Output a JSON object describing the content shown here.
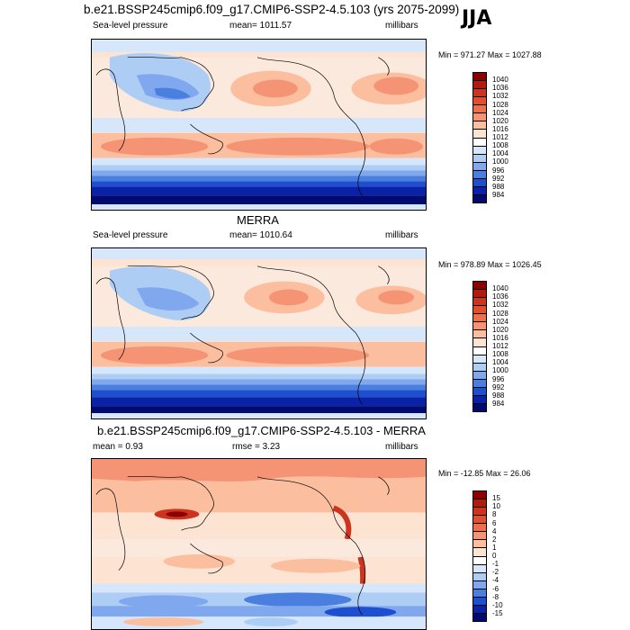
{
  "header": {
    "title": "b.e21.BSSP245cmip6.f09_g17.CMIP6-SSP2-4.5.103 (yrs 2075-2099)",
    "season": "JJA"
  },
  "panels": [
    {
      "variable": "Sea-level pressure",
      "mean_text": "mean= 1011.57",
      "units": "millibars",
      "minmax": "Min = 971.27 Max = 1027.88",
      "levels": [
        "1040",
        "1036",
        "1032",
        "1028",
        "1024",
        "1020",
        "1016",
        "1012",
        "1008",
        "1004",
        "1000",
        "996",
        "992",
        "988",
        "984"
      ],
      "colors": [
        "#8b0000",
        "#b01b0c",
        "#cc3420",
        "#e0502e",
        "#ee6f4c",
        "#f59475",
        "#fbbfa0",
        "#fde3d2",
        "#ffffff",
        "#d6e6fb",
        "#aecdf5",
        "#7fa8ee",
        "#4a7fe0",
        "#1e4fd0",
        "#0a22a8",
        "#000a70"
      ]
    },
    {
      "title": "MERRA",
      "variable": "Sea-level pressure",
      "mean_text": "mean= 1010.64",
      "units": "millibars",
      "minmax": "Min = 978.89 Max = 1026.45",
      "levels": [
        "1040",
        "1036",
        "1032",
        "1028",
        "1024",
        "1020",
        "1016",
        "1012",
        "1008",
        "1004",
        "1000",
        "996",
        "992",
        "988",
        "984"
      ],
      "colors": [
        "#8b0000",
        "#b01b0c",
        "#cc3420",
        "#e0502e",
        "#ee6f4c",
        "#f59475",
        "#fbbfa0",
        "#fde3d2",
        "#ffffff",
        "#d6e6fb",
        "#aecdf5",
        "#7fa8ee",
        "#4a7fe0",
        "#1e4fd0",
        "#0a22a8",
        "#000a70"
      ]
    },
    {
      "title": "b.e21.BSSP245cmip6.f09_g17.CMIP6-SSP2-4.5.103 - MERRA",
      "mean_text": "mean =   0.93",
      "rmse_text": "rmse =   3.23",
      "units": "millibars",
      "minmax": "Min = -12.85 Max =  26.06",
      "levels": [
        "15",
        "10",
        "8",
        "6",
        "4",
        "2",
        "1",
        "0",
        "-1",
        "-2",
        "-4",
        "-6",
        "-8",
        "-10",
        "-15"
      ],
      "colors": [
        "#8b0000",
        "#b01b0c",
        "#cc3420",
        "#e0502e",
        "#ee6f4c",
        "#f59475",
        "#fbbfa0",
        "#fde3d2",
        "#ffffff",
        "#d6e6fb",
        "#aecdf5",
        "#7fa8ee",
        "#4a7fe0",
        "#1e4fd0",
        "#0a22a8",
        "#000a70"
      ]
    }
  ]
}
